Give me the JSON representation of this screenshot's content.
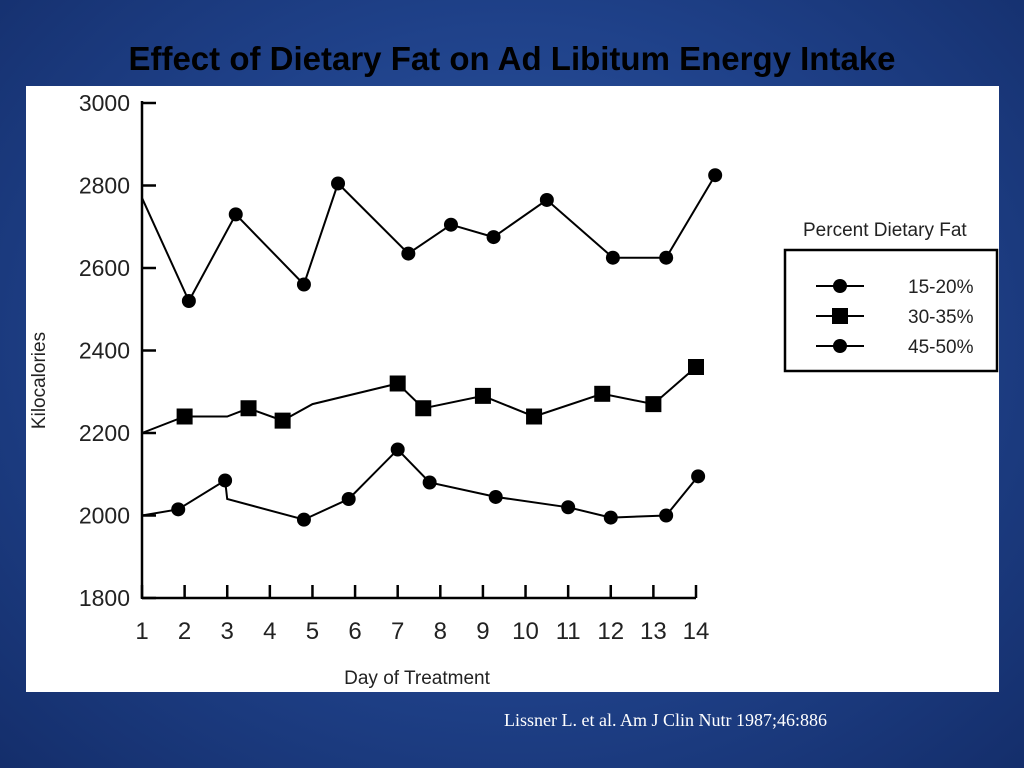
{
  "slide": {
    "title": "Effect of Dietary Fat on Ad Libitum Energy Intake",
    "citation": "Lissner L. et al. Am J Clin Nutr 1987;46:886"
  },
  "colors": {
    "background": "#1f4189",
    "panel": "#ffffff",
    "ink": "#000000"
  },
  "chart_data": {
    "type": "line",
    "title": "Effect of Dietary Fat on Ad Libitum Energy Intake",
    "xlabel": "Day of Treatment",
    "ylabel": "Kilocalories",
    "ylim": [
      1800,
      3000
    ],
    "xlim": [
      1,
      14
    ],
    "x_ticks": [
      1,
      2,
      3,
      4,
      5,
      6,
      7,
      8,
      9,
      10,
      11,
      12,
      13,
      14
    ],
    "y_ticks": [
      1800,
      2000,
      2200,
      2400,
      2600,
      2800,
      3000
    ],
    "grid": false,
    "legend": {
      "title": "Percent  Dietary Fat",
      "placement": "right"
    },
    "series": [
      {
        "name": "15-20%",
        "marker": "circle",
        "points": [
          {
            "x": 1.0,
            "y": 2000
          },
          {
            "x": 1.85,
            "y": 2015
          },
          {
            "x": 2.95,
            "y": 2085
          },
          {
            "x": 3.0,
            "y": 2040
          },
          {
            "x": 4.8,
            "y": 1990
          },
          {
            "x": 5.85,
            "y": 2040
          },
          {
            "x": 7.0,
            "y": 2160
          },
          {
            "x": 7.75,
            "y": 2080
          },
          {
            "x": 9.3,
            "y": 2045
          },
          {
            "x": 11.0,
            "y": 2020
          },
          {
            "x": 12.0,
            "y": 1995
          },
          {
            "x": 13.3,
            "y": 2000
          },
          {
            "x": 14.05,
            "y": 2095
          }
        ],
        "markers_from": 1,
        "skip_marker_x": [
          3.0
        ]
      },
      {
        "name": "30-35%",
        "marker": "square",
        "points": [
          {
            "x": 1.0,
            "y": 2200
          },
          {
            "x": 2.0,
            "y": 2240
          },
          {
            "x": 3.0,
            "y": 2240
          },
          {
            "x": 3.5,
            "y": 2260
          },
          {
            "x": 4.3,
            "y": 2230
          },
          {
            "x": 5.0,
            "y": 2270
          },
          {
            "x": 7.0,
            "y": 2320
          },
          {
            "x": 7.6,
            "y": 2260
          },
          {
            "x": 9.0,
            "y": 2290
          },
          {
            "x": 10.2,
            "y": 2240
          },
          {
            "x": 11.8,
            "y": 2295
          },
          {
            "x": 13.0,
            "y": 2270
          },
          {
            "x": 14.0,
            "y": 2360
          }
        ],
        "marker_x": [
          2.0,
          3.5,
          4.3,
          7.0,
          7.6,
          9.0,
          10.2,
          11.8,
          13.0,
          14.0
        ]
      },
      {
        "name": "45-50%",
        "marker": "circle",
        "points": [
          {
            "x": 1.0,
            "y": 2770
          },
          {
            "x": 2.1,
            "y": 2520
          },
          {
            "x": 3.2,
            "y": 2730
          },
          {
            "x": 4.8,
            "y": 2560
          },
          {
            "x": 5.6,
            "y": 2805
          },
          {
            "x": 7.25,
            "y": 2635
          },
          {
            "x": 8.25,
            "y": 2705
          },
          {
            "x": 9.25,
            "y": 2675
          },
          {
            "x": 10.5,
            "y": 2765
          },
          {
            "x": 12.05,
            "y": 2625
          },
          {
            "x": 13.3,
            "y": 2625
          },
          {
            "x": 14.45,
            "y": 2825
          }
        ],
        "marker_x": [
          2.1,
          3.2,
          4.8,
          5.6,
          7.25,
          8.25,
          9.25,
          10.5,
          12.05,
          13.3,
          14.45
        ]
      }
    ]
  }
}
